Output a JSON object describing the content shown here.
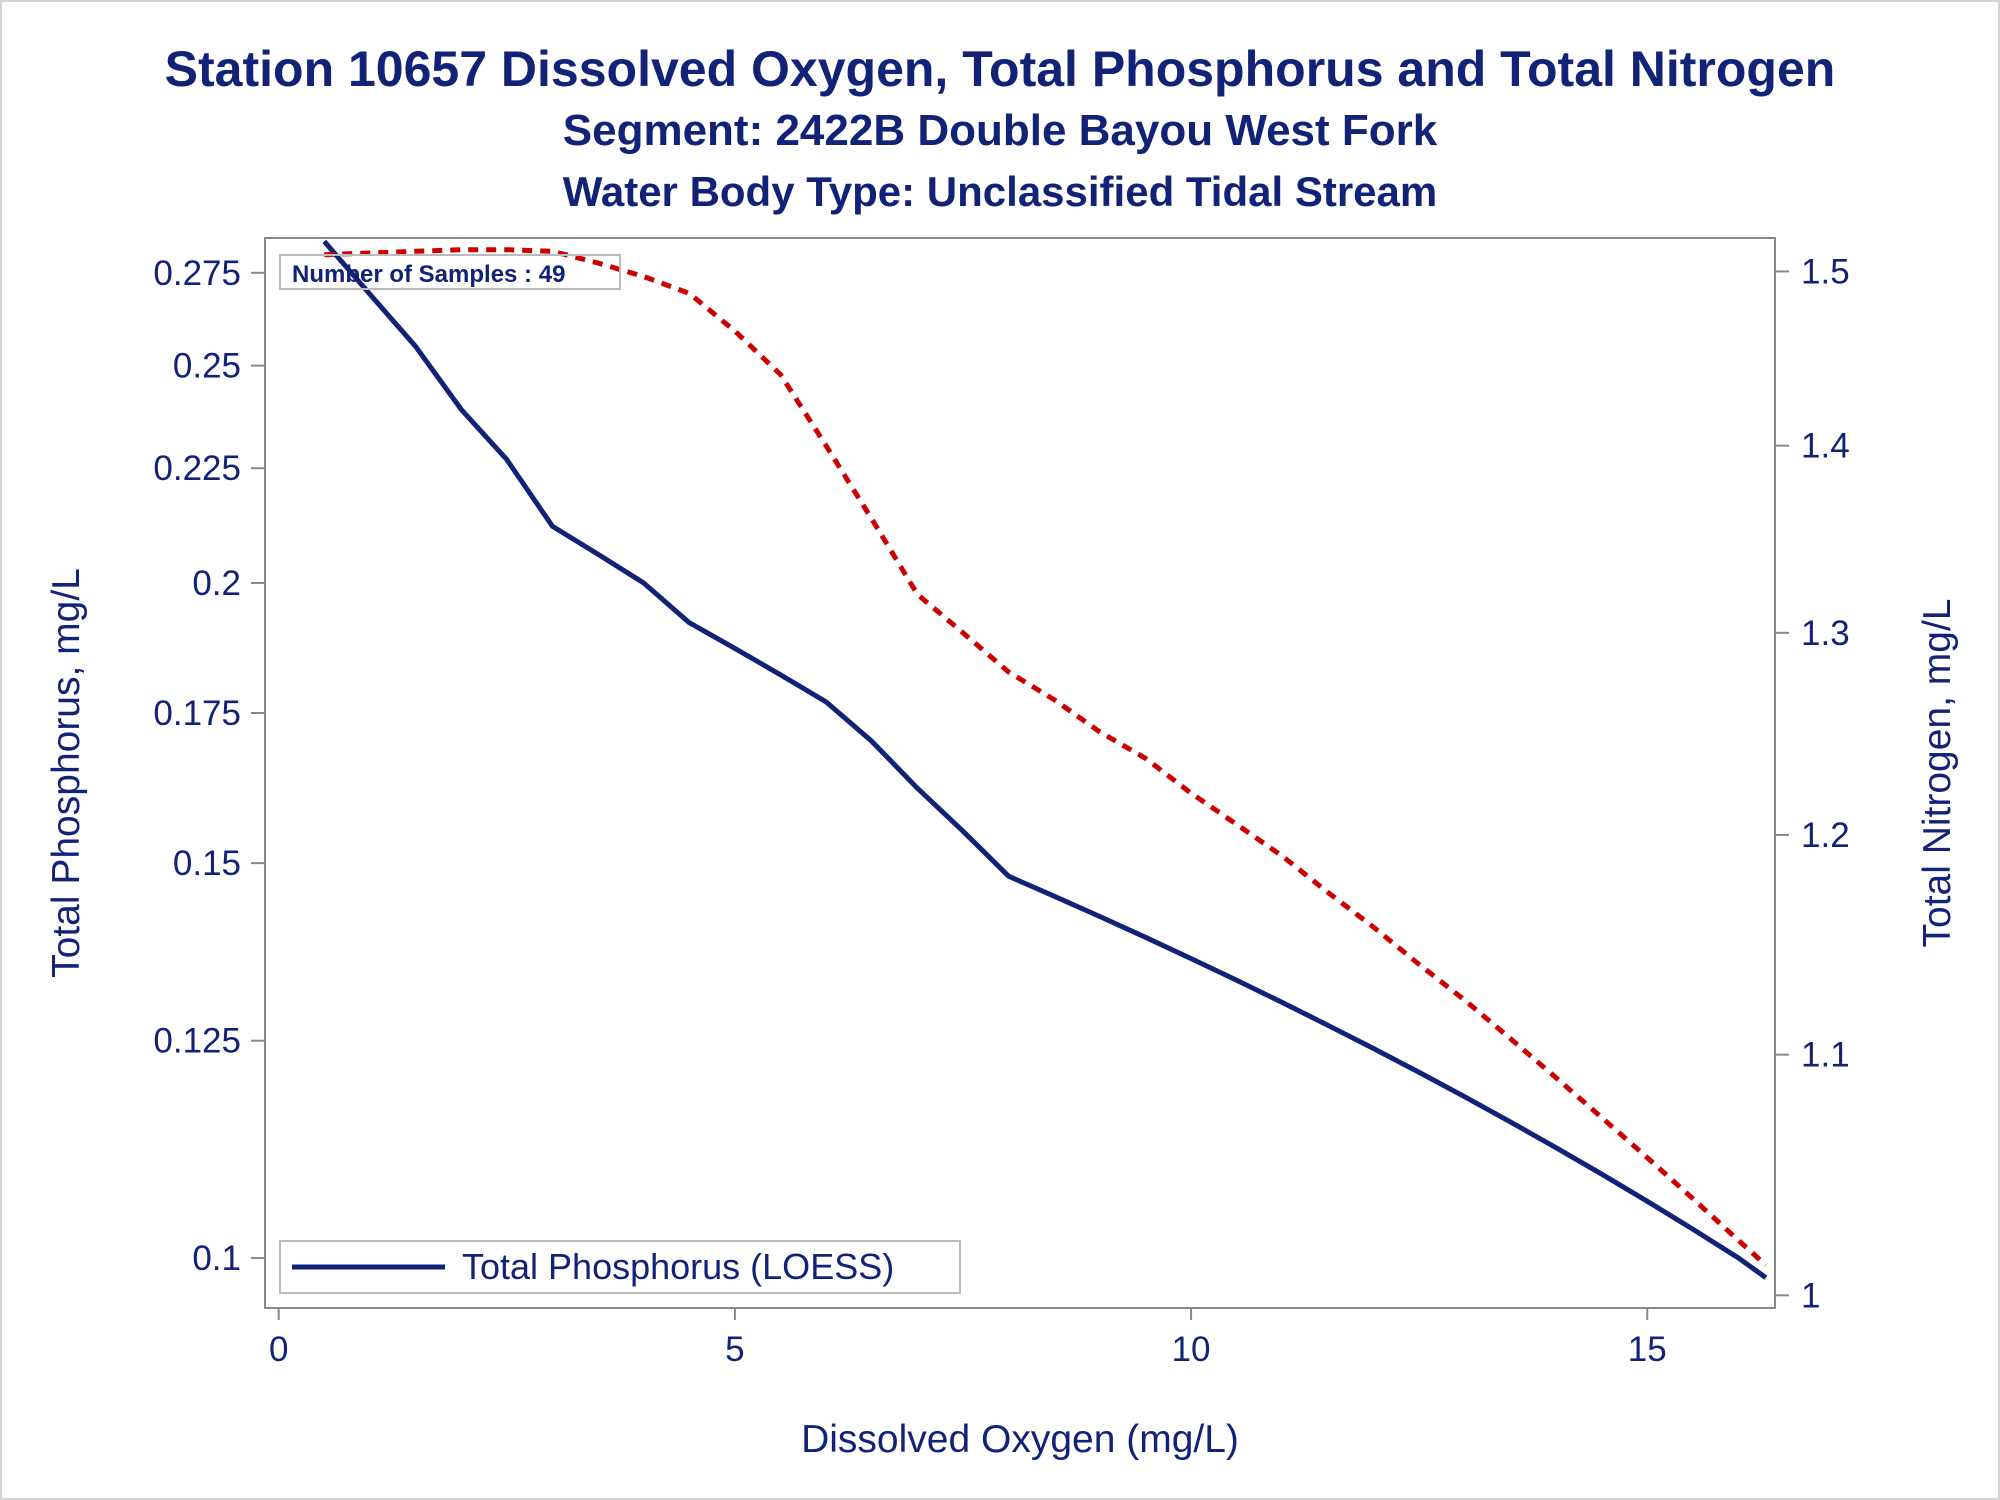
{
  "titles": {
    "line1": "Station 10657  Dissolved Oxygen, Total Phosphorus and Total Nitrogen",
    "line2": "Segment: 2422B  Double Bayou West Fork",
    "line3": "Water Body Type: Unclassified Tidal Stream"
  },
  "inset": {
    "text": "Number of Samples : 49"
  },
  "legend": {
    "label": "Total Phosphorus (LOESS)"
  },
  "colors": {
    "phosphorus": "#112277",
    "nitrogen": "#cc0000",
    "text": "#112277",
    "axis": "#888888"
  },
  "chart_data": {
    "type": "line",
    "xlabel": "Dissolved Oxygen (mg/L)",
    "ylabel": "Total Phosphorus, mg/L",
    "y2label": "Total Nitrogen, mg/L",
    "xlim": [
      -0.15,
      16.4
    ],
    "ylim": [
      0.095,
      0.285
    ],
    "y2lim": [
      0.995,
      1.52
    ],
    "xticks": [
      "0",
      "5",
      "10",
      "15"
    ],
    "yticks": [
      "0.1",
      "0.125",
      "0.15",
      "0.175",
      "0.2",
      "0.225",
      "0.25",
      "0.275"
    ],
    "y2ticks": [
      "1",
      "1.1",
      "1.2",
      "1.3",
      "1.4",
      "1.5"
    ],
    "y_scale": "log",
    "y2_scale": "log",
    "legend_position": "bottom-left",
    "series": [
      {
        "name": "Total Phosphorus (LOESS)",
        "axis": "left",
        "style": "solid",
        "x": [
          0.5,
          1.0,
          1.5,
          2.0,
          2.5,
          3.0,
          3.5,
          4.0,
          4.5,
          5.0,
          5.5,
          6.0,
          6.5,
          7.0,
          7.5,
          8.0,
          8.5,
          9.0,
          9.5,
          10.0,
          10.5,
          11.0,
          11.5,
          12.0,
          12.5,
          13.0,
          13.5,
          14.0,
          14.5,
          15.0,
          15.5,
          16.0,
          16.3
        ],
        "y": [
          0.284,
          0.269,
          0.255,
          0.239,
          0.227,
          0.212,
          0.206,
          0.2,
          0.192,
          0.187,
          0.182,
          0.177,
          0.17,
          0.162,
          0.155,
          0.148,
          0.145,
          0.142,
          0.139,
          0.136,
          0.133,
          0.13,
          0.127,
          0.124,
          0.121,
          0.118,
          0.115,
          0.112,
          0.109,
          0.106,
          0.103,
          0.1,
          0.098
        ]
      },
      {
        "name": "",
        "axis": "right",
        "style": "dashed",
        "x": [
          0.5,
          1.0,
          1.5,
          2.0,
          2.5,
          3.0,
          3.5,
          4.0,
          4.5,
          5.0,
          5.5,
          6.0,
          6.5,
          7.0,
          7.5,
          8.0,
          8.5,
          9.0,
          9.5,
          10.0,
          10.5,
          11.0,
          11.5,
          12.0,
          12.5,
          13.0,
          13.5,
          14.0,
          14.5,
          15.0,
          15.5,
          16.0,
          16.3
        ],
        "y": [
          1.51,
          1.511,
          1.512,
          1.513,
          1.513,
          1.512,
          1.505,
          1.497,
          1.487,
          1.465,
          1.44,
          1.4,
          1.36,
          1.32,
          1.3,
          1.28,
          1.266,
          1.25,
          1.237,
          1.22,
          1.205,
          1.19,
          1.173,
          1.157,
          1.14,
          1.124,
          1.107,
          1.09,
          1.073,
          1.056,
          1.039,
          1.022,
          1.012
        ]
      }
    ]
  }
}
